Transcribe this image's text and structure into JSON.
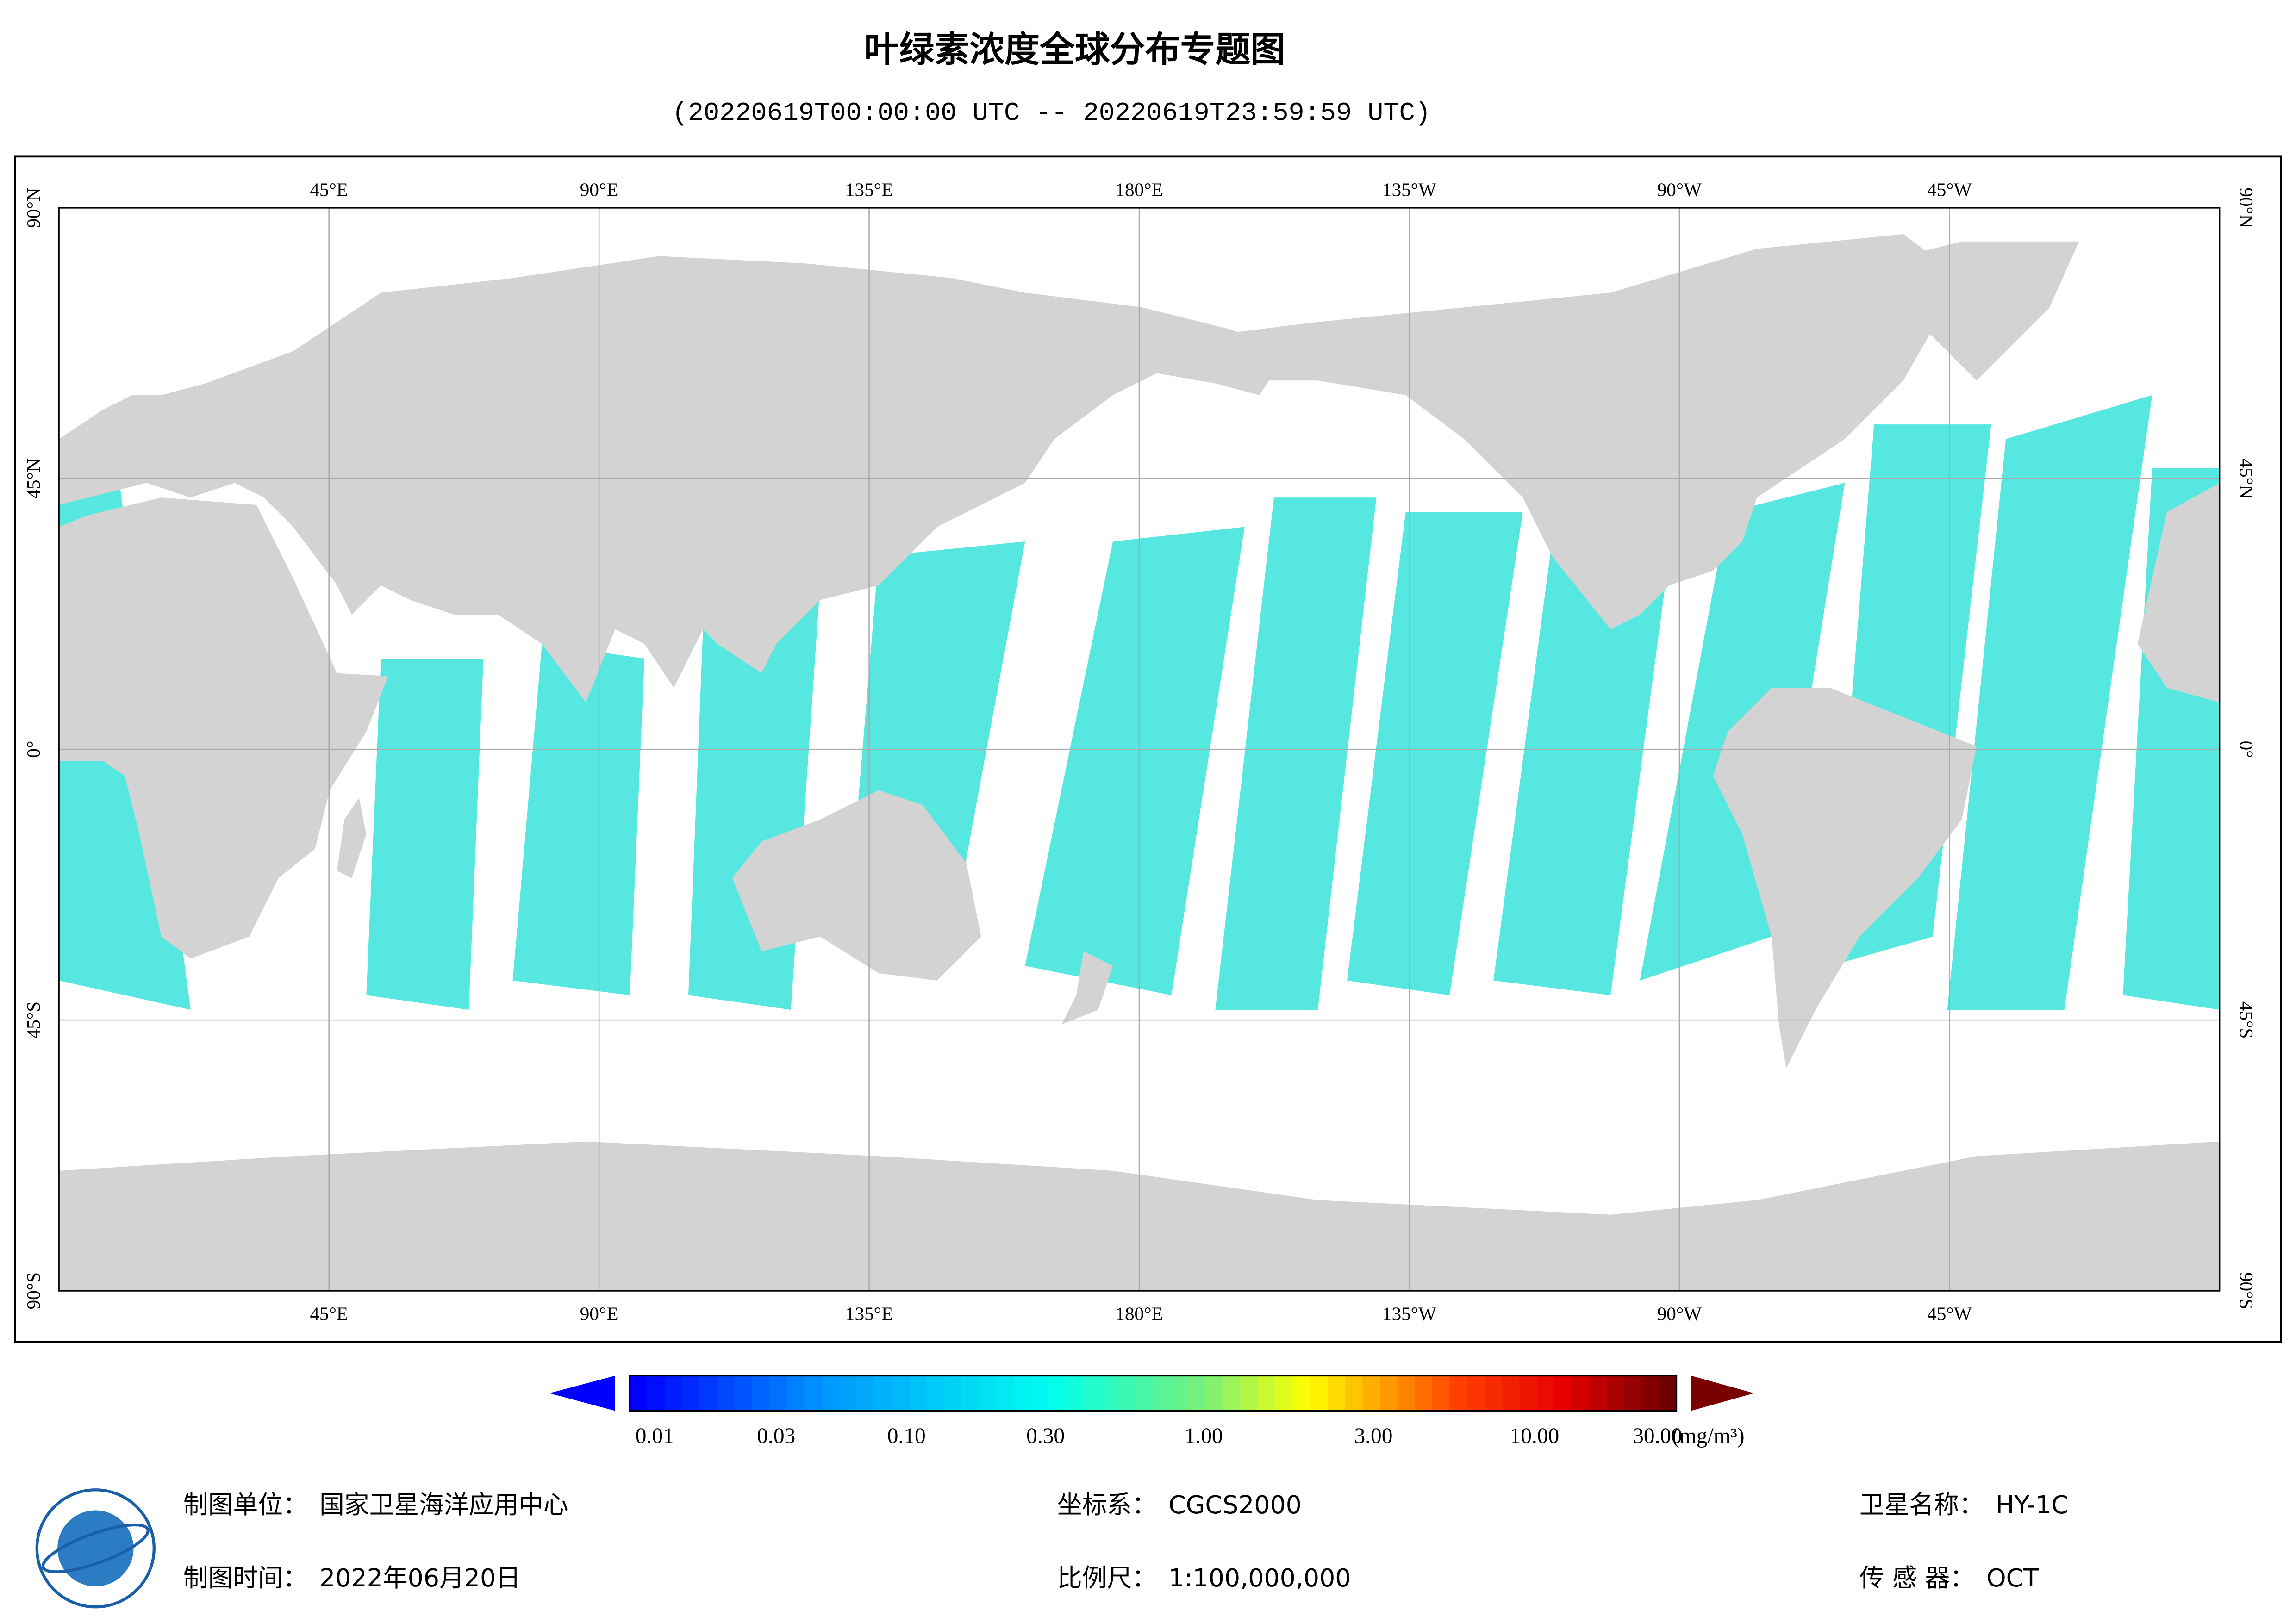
{
  "header": {
    "title": "叶绿素浓度全球分布专题图",
    "subtitle": "(20220619T00:00:00 UTC -- 20220619T23:59:59 UTC)"
  },
  "map": {
    "lon_labels": [
      "45°E",
      "90°E",
      "135°E",
      "180°E",
      "135°W",
      "90°W",
      "45°W"
    ],
    "lat_labels": [
      "90°N",
      "45°N",
      "0°",
      "45°S",
      "90°S"
    ]
  },
  "colorbar": {
    "ticks": [
      "0.01",
      "0.03",
      "0.10",
      "0.30",
      "1.00",
      "3.00",
      "10.00",
      "30.00"
    ],
    "unit": "(mg/m³)"
  },
  "footer": {
    "items": [
      {
        "label": "制图单位：",
        "value": "国家卫星海洋应用中心"
      },
      {
        "label": "制图时间：",
        "value": "2022年06月20日"
      },
      {
        "label": "坐标系：",
        "value": "CGCS2000"
      },
      {
        "label": "比例尺：",
        "value": "1:100,000,000"
      },
      {
        "label": "卫星名称：",
        "value": "HY-1C"
      },
      {
        "label": "传 感 器：",
        "value": "OCT"
      }
    ]
  }
}
